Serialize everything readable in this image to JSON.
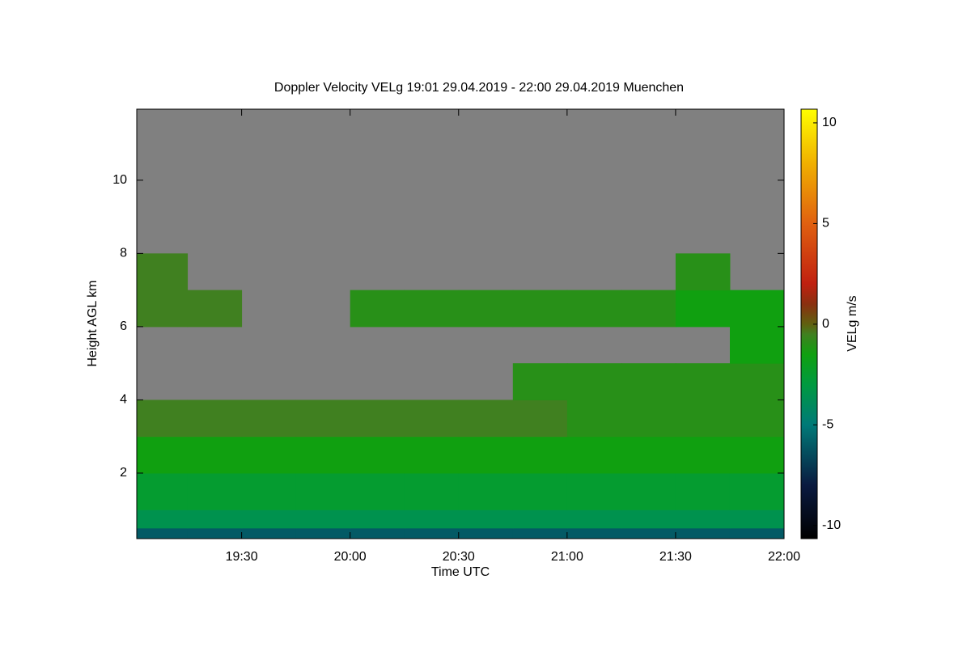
{
  "chart_data": {
    "type": "heatmap",
    "title": "Doppler Velocity VELg   19:01 29.04.2019 - 22:00 29.04.2019 Muenchen",
    "x_label": "Time UTC",
    "y_label": "Height AGL km",
    "colorbar_label": "VELg m/s",
    "xlim": [
      19.0167,
      22.0
    ],
    "ylim": [
      0.21,
      11.94
    ],
    "xticks": [
      {
        "value": 19.5,
        "label": "19:30"
      },
      {
        "value": 20.0,
        "label": "20:00"
      },
      {
        "value": 20.5,
        "label": "20:30"
      },
      {
        "value": 21.0,
        "label": "21:00"
      },
      {
        "value": 21.5,
        "label": "21:30"
      },
      {
        "value": 22.0,
        "label": "22:00"
      }
    ],
    "yticks": [
      2,
      4,
      6,
      8,
      10
    ],
    "clim": [
      -10.65,
      10.68
    ],
    "cticks": [
      -10,
      -5,
      0,
      5,
      10
    ],
    "background": "#808080",
    "colorscale": [
      [
        -10.65,
        "#000000"
      ],
      [
        -8,
        "#0a1a40"
      ],
      [
        -5,
        "#007a78"
      ],
      [
        -3,
        "#009a40"
      ],
      [
        -1.5,
        "#10a010"
      ],
      [
        -0.5,
        "#408020"
      ],
      [
        0,
        "#606010"
      ],
      [
        1,
        "#8a3010"
      ],
      [
        2,
        "#c02010"
      ],
      [
        5,
        "#e06010"
      ],
      [
        8,
        "#f0b000"
      ],
      [
        10.68,
        "#ffff00"
      ]
    ],
    "x_edges": [
      19.0167,
      19.25,
      19.5,
      19.75,
      20.0,
      20.25,
      20.5,
      20.75,
      21.0,
      21.25,
      21.5,
      21.75,
      22.0
    ],
    "y_edges": [
      0.21,
      0.5,
      1,
      2,
      3,
      4,
      5,
      6,
      7,
      8,
      11.94
    ],
    "z": [
      [
        -6,
        -6,
        -6,
        -6,
        -6,
        -6,
        -6,
        -6,
        -6,
        -6,
        -6,
        -6
      ],
      [
        -3.5,
        -3.5,
        -3.5,
        -3.5,
        -3.5,
        -3.5,
        -3.5,
        -3.5,
        -3.5,
        -3.5,
        -3.5,
        -3.5
      ],
      [
        -2.5,
        -2.5,
        -2.5,
        -2.5,
        -2.5,
        -2.5,
        -2.5,
        -2.5,
        -2.5,
        -2.5,
        -2.5,
        -2.5
      ],
      [
        -1.5,
        -1.5,
        -1.5,
        -1.5,
        -1.5,
        -1.5,
        -1.5,
        -1.5,
        -1.5,
        -1.5,
        -1.5,
        -1.5
      ],
      [
        -0.5,
        -0.5,
        -0.5,
        -0.5,
        -0.5,
        -0.5,
        -0.5,
        -0.5,
        -1,
        -1,
        -1,
        -1
      ],
      [
        null,
        null,
        null,
        null,
        null,
        null,
        null,
        -1,
        -1,
        -1,
        -1,
        -1
      ],
      [
        null,
        null,
        null,
        null,
        null,
        null,
        null,
        null,
        null,
        null,
        null,
        -1.5
      ],
      [
        -0.5,
        -0.5,
        null,
        null,
        -1,
        -1,
        -1,
        -1,
        -1,
        -1,
        -1.5,
        -1.5
      ],
      [
        -0.5,
        null,
        null,
        null,
        null,
        null,
        null,
        null,
        null,
        null,
        -1,
        null
      ],
      [
        null,
        null,
        null,
        null,
        null,
        null,
        null,
        null,
        null,
        null,
        null,
        null
      ]
    ]
  }
}
